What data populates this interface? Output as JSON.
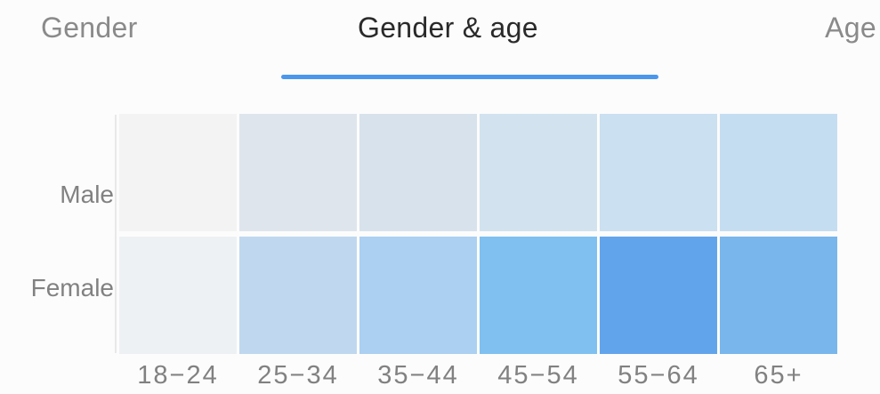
{
  "tabs": [
    {
      "label": "Gender",
      "active": false
    },
    {
      "label": "Gender & age",
      "active": true
    },
    {
      "label": "Age",
      "active": false
    }
  ],
  "colors": {
    "accent": "#4a97ee",
    "heat_low": "#eef1f4",
    "heat_high": "#62a4ec"
  },
  "chart_data": {
    "type": "heatmap",
    "rows": [
      "Male",
      "Female"
    ],
    "columns": [
      "18-24",
      "25-34",
      "35-44",
      "45-54",
      "55-64",
      "65+"
    ],
    "values": [
      [
        0.02,
        0.18,
        0.24,
        0.3,
        0.36,
        0.4
      ],
      [
        0.06,
        0.45,
        0.55,
        0.82,
        1.0,
        0.84
      ]
    ],
    "cell_colors": [
      [
        "#f3f3f3",
        "#dfe5ec",
        "#d8e2ec",
        "#d2e2ef",
        "#cbe0f1",
        "#c5ddf1"
      ],
      [
        "#eef1f4",
        "#bfd8ef",
        "#abd0f2",
        "#7fc0f1",
        "#62a4ec",
        "#79b6ec"
      ]
    ],
    "legend": "none",
    "grid": false
  }
}
